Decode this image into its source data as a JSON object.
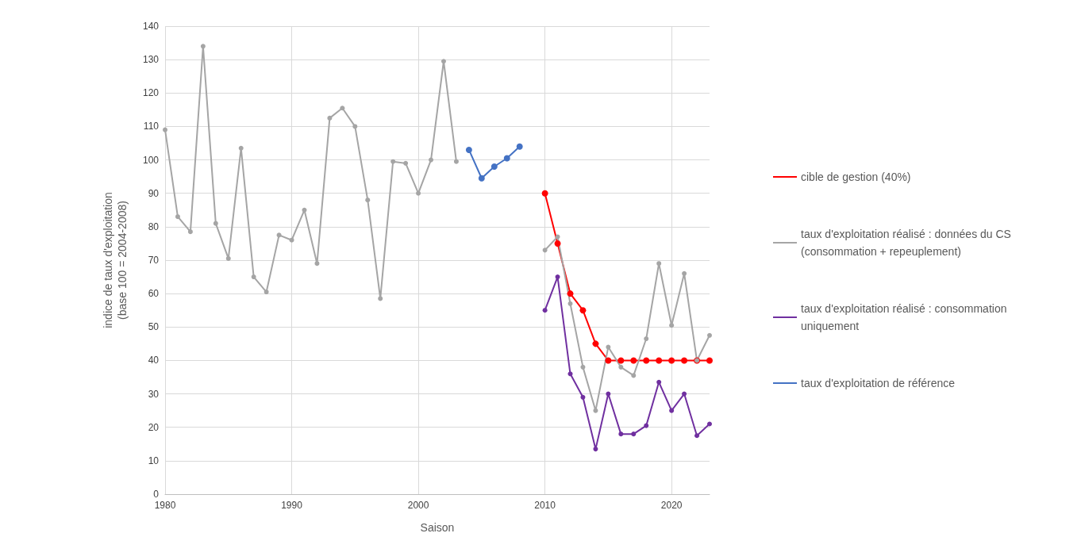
{
  "chart_data": {
    "type": "line",
    "xlabel": "Saison",
    "ylabel": "indice de taux d'exploitation\n(base 100 = 2004-2008)",
    "xlim": [
      1980,
      2023
    ],
    "xticks": [
      1980,
      1990,
      2000,
      2010,
      2020
    ],
    "ylim": [
      0,
      140
    ],
    "yticks": [
      0,
      10,
      20,
      30,
      40,
      50,
      60,
      70,
      80,
      90,
      100,
      110,
      120,
      130,
      140
    ],
    "grid": true,
    "legend": "right",
    "marker": "circle",
    "line_style": "solid",
    "series": [
      {
        "name": "cible de gestion (40%)",
        "color": "#ff0000",
        "x": [
          2010,
          2011,
          2012,
          2013,
          2014,
          2015,
          2016,
          2017,
          2018,
          2019,
          2020,
          2021,
          2022,
          2023
        ],
        "values": [
          90,
          75,
          60,
          55,
          45,
          40,
          40,
          40,
          40,
          40,
          40,
          40,
          40,
          40
        ]
      },
      {
        "name": "taux d'exploitation réalisé : données du CS (consommation + repeuplement)",
        "color": "#a5a5a5",
        "x": [
          1980,
          1981,
          1982,
          1983,
          1984,
          1985,
          1986,
          1987,
          1988,
          1989,
          1990,
          1991,
          1992,
          1993,
          1994,
          1995,
          1996,
          1997,
          1998,
          1999,
          2000,
          2001,
          2002,
          2003,
          2004,
          2010,
          2011,
          2012,
          2013,
          2014,
          2015,
          2016,
          2017,
          2018,
          2019,
          2020,
          2021,
          2022,
          2023
        ],
        "values": [
          109,
          83,
          78.5,
          134,
          81,
          70.5,
          103.5,
          65,
          60.5,
          77.5,
          76,
          85,
          69,
          112.5,
          115.5,
          110,
          88,
          58.5,
          99.5,
          99,
          90,
          100,
          129.5,
          99.5,
          null,
          73,
          77,
          57,
          38,
          25,
          44,
          38,
          35.5,
          46.5,
          69,
          50.5,
          66,
          40,
          47.5
        ]
      },
      {
        "name": "taux d'exploitation réalisé : consommation uniquement",
        "color": "#7030a0",
        "x": [
          2010,
          2011,
          2012,
          2013,
          2014,
          2015,
          2016,
          2017,
          2018,
          2019,
          2020,
          2021,
          2022,
          2023
        ],
        "values": [
          55,
          65,
          36,
          29,
          13.5,
          30,
          18,
          18,
          20.5,
          33.5,
          25,
          30,
          17.5,
          21
        ]
      },
      {
        "name": "taux d'exploitation de référence",
        "color": "#4472c4",
        "x": [
          2004,
          2005,
          2006,
          2007,
          2008
        ],
        "values": [
          103,
          94.5,
          98,
          100.5,
          104
        ]
      }
    ]
  }
}
